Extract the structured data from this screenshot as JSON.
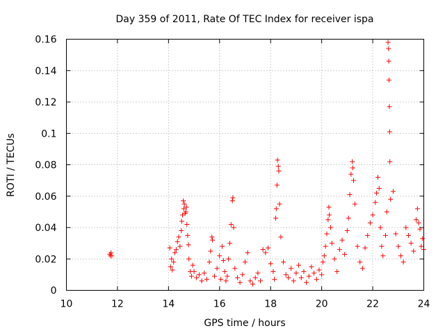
{
  "chart_data": {
    "type": "scatter",
    "title": "Day 359 of 2011, Rate Of TEC Index for receiver ispa",
    "xlabel": "GPS time / hours",
    "ylabel": "ROTI / TECUs",
    "xlim": [
      10,
      24
    ],
    "ylim": [
      0,
      0.16
    ],
    "xticks": [
      10,
      12,
      14,
      16,
      18,
      20,
      22,
      24
    ],
    "xtick_labels": [
      "10",
      "12",
      "14",
      "16",
      "18",
      "20",
      "22",
      "24"
    ],
    "yticks": [
      0,
      0.02,
      0.04,
      0.06,
      0.08,
      0.1,
      0.12,
      0.14,
      0.16
    ],
    "ytick_labels": [
      "0",
      "0.02",
      "0.04",
      "0.06",
      "0.08",
      "0.1",
      "0.12",
      "0.14",
      "0.16"
    ],
    "grid": true,
    "marker": "+",
    "color": "#ff0000",
    "series": [
      {
        "name": "ROTI",
        "points": [
          [
            11.7,
            0.023
          ],
          [
            11.72,
            0.022
          ],
          [
            11.75,
            0.024
          ],
          [
            11.78,
            0.022
          ],
          [
            14.05,
            0.027
          ],
          [
            14.08,
            0.015
          ],
          [
            14.12,
            0.02
          ],
          [
            14.15,
            0.013
          ],
          [
            14.2,
            0.018
          ],
          [
            14.25,
            0.024
          ],
          [
            14.3,
            0.026
          ],
          [
            14.35,
            0.031
          ],
          [
            14.4,
            0.034
          ],
          [
            14.45,
            0.028
          ],
          [
            14.5,
            0.038
          ],
          [
            14.52,
            0.044
          ],
          [
            14.55,
            0.048
          ],
          [
            14.58,
            0.057
          ],
          [
            14.6,
            0.052
          ],
          [
            14.62,
            0.055
          ],
          [
            14.65,
            0.049
          ],
          [
            14.68,
            0.05
          ],
          [
            14.7,
            0.053
          ],
          [
            14.72,
            0.042
          ],
          [
            14.75,
            0.035
          ],
          [
            14.78,
            0.029
          ],
          [
            14.8,
            0.02
          ],
          [
            14.85,
            0.012
          ],
          [
            14.9,
            0.009
          ],
          [
            14.95,
            0.016
          ],
          [
            15.0,
            0.012
          ],
          [
            15.1,
            0.008
          ],
          [
            15.2,
            0.01
          ],
          [
            15.3,
            0.006
          ],
          [
            15.4,
            0.011
          ],
          [
            15.5,
            0.007
          ],
          [
            15.6,
            0.018
          ],
          [
            15.65,
            0.025
          ],
          [
            15.7,
            0.034
          ],
          [
            15.72,
            0.032
          ],
          [
            15.8,
            0.009
          ],
          [
            15.9,
            0.014
          ],
          [
            16.0,
            0.022
          ],
          [
            16.05,
            0.007
          ],
          [
            16.1,
            0.028
          ],
          [
            16.15,
            0.019
          ],
          [
            16.2,
            0.012
          ],
          [
            16.25,
            0.006
          ],
          [
            16.3,
            0.009
          ],
          [
            16.35,
            0.02
          ],
          [
            16.4,
            0.03
          ],
          [
            16.45,
            0.042
          ],
          [
            16.5,
            0.057
          ],
          [
            16.52,
            0.059
          ],
          [
            16.55,
            0.04
          ],
          [
            16.6,
            0.014
          ],
          [
            16.7,
            0.008
          ],
          [
            16.8,
            0.005
          ],
          [
            16.9,
            0.01
          ],
          [
            17.0,
            0.018
          ],
          [
            17.1,
            0.024
          ],
          [
            17.2,
            0.006
          ],
          [
            17.3,
            0.004
          ],
          [
            17.4,
            0.008
          ],
          [
            17.5,
            0.011
          ],
          [
            17.6,
            0.006
          ],
          [
            17.7,
            0.026
          ],
          [
            17.8,
            0.024
          ],
          [
            17.9,
            0.027
          ],
          [
            18.0,
            0.017
          ],
          [
            18.1,
            0.012
          ],
          [
            18.15,
            0.007
          ],
          [
            18.2,
            0.046
          ],
          [
            18.22,
            0.052
          ],
          [
            18.25,
            0.067
          ],
          [
            18.27,
            0.083
          ],
          [
            18.3,
            0.079
          ],
          [
            18.32,
            0.076
          ],
          [
            18.35,
            0.055
          ],
          [
            18.4,
            0.034
          ],
          [
            18.5,
            0.018
          ],
          [
            18.6,
            0.01
          ],
          [
            18.7,
            0.008
          ],
          [
            18.8,
            0.014
          ],
          [
            18.9,
            0.006
          ],
          [
            19.0,
            0.011
          ],
          [
            19.1,
            0.016
          ],
          [
            19.2,
            0.008
          ],
          [
            19.3,
            0.012
          ],
          [
            19.4,
            0.005
          ],
          [
            19.5,
            0.009
          ],
          [
            19.6,
            0.015
          ],
          [
            19.7,
            0.011
          ],
          [
            19.8,
            0.007
          ],
          [
            19.9,
            0.013
          ],
          [
            20.0,
            0.01
          ],
          [
            20.05,
            0.018
          ],
          [
            20.1,
            0.022
          ],
          [
            20.15,
            0.028
          ],
          [
            20.2,
            0.036
          ],
          [
            20.25,
            0.045
          ],
          [
            20.28,
            0.053
          ],
          [
            20.3,
            0.048
          ],
          [
            20.35,
            0.04
          ],
          [
            20.4,
            0.03
          ],
          [
            20.5,
            0.02
          ],
          [
            20.6,
            0.012
          ],
          [
            20.7,
            0.026
          ],
          [
            20.8,
            0.032
          ],
          [
            20.9,
            0.023
          ],
          [
            21.0,
            0.038
          ],
          [
            21.05,
            0.046
          ],
          [
            21.1,
            0.061
          ],
          [
            21.15,
            0.074
          ],
          [
            21.2,
            0.082
          ],
          [
            21.22,
            0.078
          ],
          [
            21.25,
            0.07
          ],
          [
            21.3,
            0.055
          ],
          [
            21.4,
            0.028
          ],
          [
            21.5,
            0.018
          ],
          [
            21.6,
            0.014
          ],
          [
            21.7,
            0.027
          ],
          [
            21.8,
            0.035
          ],
          [
            21.9,
            0.043
          ],
          [
            22.0,
            0.048
          ],
          [
            22.1,
            0.056
          ],
          [
            22.15,
            0.062
          ],
          [
            22.2,
            0.072
          ],
          [
            22.25,
            0.065
          ],
          [
            22.3,
            0.04
          ],
          [
            22.35,
            0.028
          ],
          [
            22.4,
            0.022
          ],
          [
            22.5,
            0.035
          ],
          [
            22.55,
            0.05
          ],
          [
            22.6,
            0.158
          ],
          [
            22.62,
            0.154
          ],
          [
            22.63,
            0.146
          ],
          [
            22.64,
            0.134
          ],
          [
            22.65,
            0.117
          ],
          [
            22.66,
            0.101
          ],
          [
            22.67,
            0.082
          ],
          [
            22.7,
            0.058
          ],
          [
            22.8,
            0.063
          ],
          [
            22.9,
            0.036
          ],
          [
            23.0,
            0.028
          ],
          [
            23.1,
            0.022
          ],
          [
            23.2,
            0.018
          ],
          [
            23.3,
            0.04
          ],
          [
            23.4,
            0.035
          ],
          [
            23.5,
            0.03
          ],
          [
            23.6,
            0.025
          ],
          [
            23.7,
            0.045
          ],
          [
            23.75,
            0.052
          ],
          [
            23.8,
            0.043
          ],
          [
            23.85,
            0.039
          ],
          [
            23.9,
            0.028
          ],
          [
            23.95,
            0.033
          ],
          [
            24.0,
            0.026
          ]
        ]
      }
    ]
  }
}
